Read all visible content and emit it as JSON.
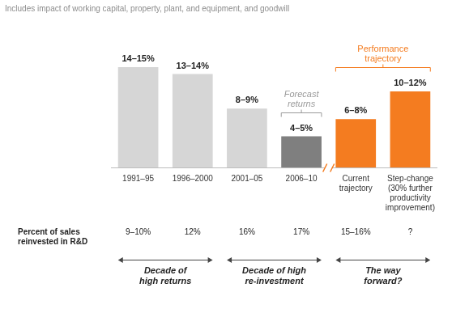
{
  "chart_data": {
    "type": "bar",
    "subtitle": "Includes impact of working capital, property, plant, and equipment, and goodwill",
    "categories": [
      "1991–95",
      "1996–2000",
      "2001–05",
      "2006–10",
      "Current\ntrajectory",
      "Step-change\n(30% further\nproductivity\nimprovement)"
    ],
    "values": [
      14.5,
      13.5,
      8.5,
      4.5,
      7,
      11
    ],
    "value_labels": [
      "14–15%",
      "13–14%",
      "8–9%",
      "4–5%",
      "6–8%",
      "10–12%"
    ],
    "data_labels": true,
    "colors": [
      "#d6d6d6",
      "#d6d6d6",
      "#d6d6d6",
      "#7f7f7f",
      "#f47c20",
      "#f47c20"
    ],
    "tick_labels": "x",
    "grid": false,
    "annotations": [
      {
        "text": "Forecast\nreturns",
        "span": [
          "2006–10",
          "2006–10"
        ],
        "color": "#9a9a9a"
      },
      {
        "text": "Performance\ntrajectory",
        "span": [
          "Current\ntrajectory",
          "Step-change\n(30% further\nproductivity\nimprovement)"
        ],
        "color": "#f47c20"
      }
    ],
    "row": {
      "label": "Percent of sales\nreinvested in R&D",
      "values": [
        "9–10%",
        "12%",
        "16%",
        "17%",
        "15–16%",
        "?"
      ]
    },
    "groups": [
      {
        "label": "Decade of\nhigh returns",
        "span": [
          "1991–95",
          "1996–2000"
        ]
      },
      {
        "label": "Decade of high\nre-investment",
        "span": [
          "2001–05",
          "2006–10"
        ]
      },
      {
        "label": "The way\nforward?",
        "span": [
          "Current\ntrajectory",
          "Step-change\n(30% further\nproductivity\nimprovement)"
        ]
      }
    ]
  }
}
